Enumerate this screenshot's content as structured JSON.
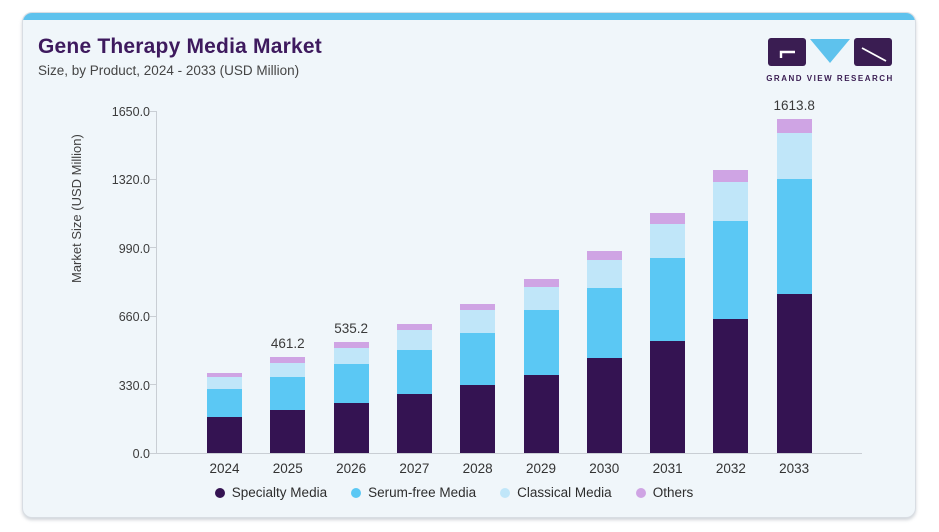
{
  "header": {
    "title": "Gene Therapy Media Market",
    "subtitle": "Size, by Product, 2024 - 2033 (USD Million)",
    "logo_text": "GRAND VIEW RESEARCH"
  },
  "colors": {
    "accent_bar": "#5ec2ed",
    "card_background": "#f0f6fa",
    "title_text": "#3e1a5e",
    "axis_line": "#c9ced4",
    "logo_purple": "#3a1d52",
    "logo_triangle": "#5ec2ed"
  },
  "chart_data": {
    "type": "bar",
    "stacked": true,
    "title": "Gene Therapy Media Market",
    "subtitle": "Size, by Product, 2024 - 2033 (USD Million)",
    "categories": [
      "2024",
      "2025",
      "2026",
      "2027",
      "2028",
      "2029",
      "2030",
      "2031",
      "2032",
      "2033"
    ],
    "series": [
      {
        "name": "Specialty Media",
        "color": "#341352",
        "values": [
          172,
          206,
          240,
          285,
          327,
          378,
          457,
          539,
          645,
          768.2
        ]
      },
      {
        "name": "Serum-free Media",
        "color": "#5bc8f4",
        "values": [
          136,
          163,
          188,
          210,
          253,
          310,
          338,
          403,
          474,
          555.1
        ]
      },
      {
        "name": "Classical Media",
        "color": "#c0e6f9",
        "values": [
          57,
          67,
          78,
          97,
          111,
          115,
          135,
          163,
          188,
          220.3
        ]
      },
      {
        "name": "Others",
        "color": "#cfa4e4",
        "values": [
          23,
          25.2,
          29.2,
          29,
          29,
          35,
          45,
          54,
          60,
          70.2
        ]
      }
    ],
    "totals_labels": [
      "",
      "461.2",
      "535.2",
      "",
      "",
      "",
      "",
      "",
      "",
      "1613.8"
    ],
    "ylabel": "Market Size (USD Million)",
    "xlabel": "",
    "ylim": [
      0,
      1650
    ],
    "yticks": [
      0,
      330,
      660,
      990,
      1320,
      1650
    ],
    "ytick_labels": [
      "0.0",
      "330.0",
      "660.0",
      "990.0",
      "1320.0",
      "1650.0"
    ],
    "grid": false,
    "legend_position": "bottom",
    "legend": [
      "Specialty Media",
      "Serum-free Media",
      "Classical Media",
      "Others"
    ]
  }
}
